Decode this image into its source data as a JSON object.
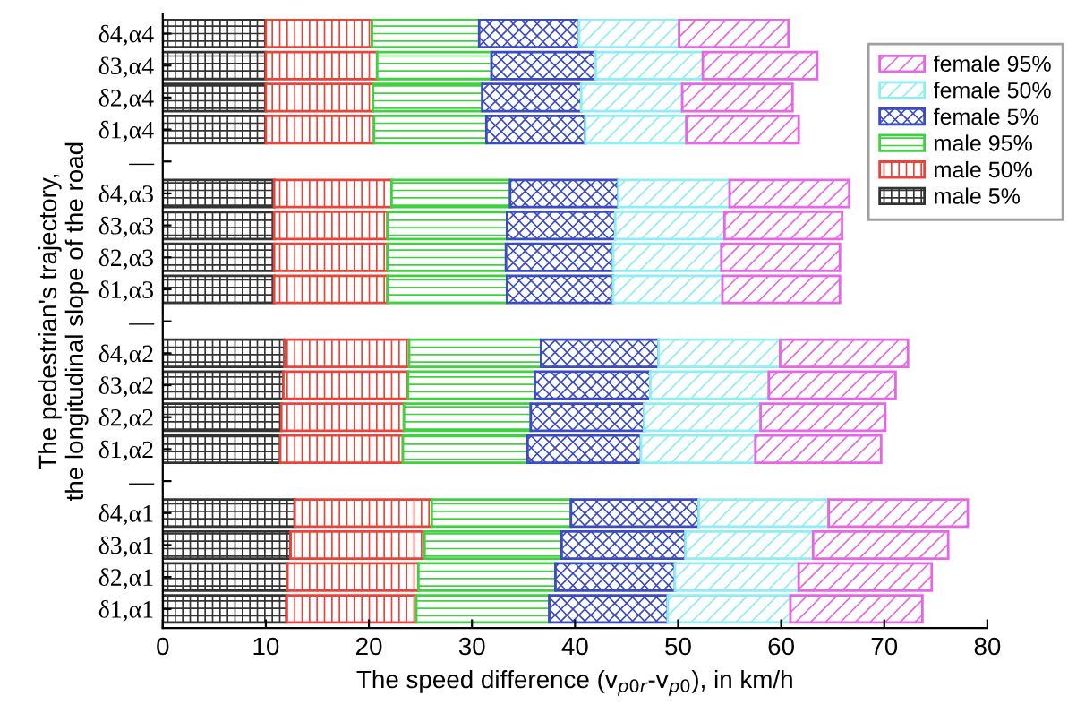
{
  "chart_data": {
    "type": "bar",
    "orientation": "horizontal",
    "stacked": true,
    "xlabel": "The speed difference (v$_{p0r}$-v$_{p0}$), in km/h",
    "ylabel": "The pedestrian's trajectory,\nthe longitudinal slope of the road",
    "categories": [
      "δ4,α4",
      "δ3,α4",
      "δ2,α4",
      "δ1,α4",
      "—",
      "δ4,α3",
      "δ3,α3",
      "δ2,α3",
      "δ1,α3",
      "—",
      "δ4,α2",
      "δ3,α2",
      "δ2,α2",
      "δ1,α2",
      "—",
      "δ4,α1",
      "δ3,α1",
      "δ2,α1",
      "δ1,α1"
    ],
    "series": [
      {
        "name": "male 5%",
        "color": "#333333",
        "values": [
          10.0,
          10.0,
          10.0,
          10.0,
          null,
          10.8,
          10.8,
          10.8,
          10.8,
          null,
          11.8,
          11.7,
          11.5,
          11.4,
          null,
          12.8,
          12.4,
          12.1,
          12.0
        ]
      },
      {
        "name": "male 50%",
        "color": "#e8443a",
        "values": [
          10.3,
          10.8,
          10.4,
          10.5,
          null,
          11.4,
          11.0,
          11.0,
          11.0,
          null,
          12.1,
          12.1,
          11.9,
          11.9,
          null,
          13.3,
          13.0,
          12.7,
          12.6
        ]
      },
      {
        "name": "male 95%",
        "color": "#3fd13f",
        "values": [
          10.4,
          11.1,
          10.6,
          10.9,
          null,
          11.5,
          11.6,
          11.5,
          11.6,
          null,
          12.8,
          12.3,
          12.3,
          12.1,
          null,
          13.5,
          13.3,
          13.3,
          12.9
        ]
      },
      {
        "name": "female 5%",
        "color": "#3b4bc4",
        "values": [
          9.7,
          10.1,
          9.6,
          9.6,
          null,
          10.5,
          10.5,
          10.4,
          10.3,
          null,
          11.4,
          11.2,
          11.0,
          11.0,
          null,
          12.4,
          12.0,
          11.6,
          11.5
        ]
      },
      {
        "name": "female 50%",
        "color": "#8eeef2",
        "values": [
          9.7,
          10.4,
          9.8,
          9.8,
          null,
          10.8,
          10.6,
          10.5,
          10.6,
          null,
          11.8,
          11.5,
          11.3,
          11.1,
          null,
          12.6,
          12.4,
          12.0,
          11.9
        ]
      },
      {
        "name": "female 95%",
        "color": "#e666e6",
        "values": [
          10.6,
          11.1,
          10.7,
          10.9,
          null,
          11.6,
          11.4,
          11.5,
          11.4,
          null,
          12.4,
          12.3,
          12.1,
          12.2,
          null,
          13.5,
          13.1,
          12.9,
          12.8
        ]
      }
    ],
    "xlim": [
      0,
      80
    ],
    "xticks": [
      0,
      10,
      20,
      30,
      40,
      50,
      60,
      70,
      80
    ],
    "legend": "top right",
    "grid": false
  }
}
